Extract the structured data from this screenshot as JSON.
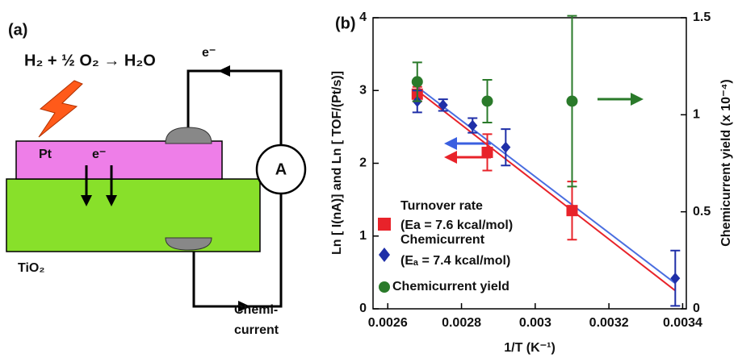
{
  "diagram": {
    "panel_label": "(a)",
    "reaction": "H₂ + ½ O₂ → H₂O",
    "electron_top": "e⁻",
    "metal": "Pt",
    "electron_metal": "e⁻",
    "ammeter": "A",
    "oxide": "TiO₂",
    "current_label_1": "Chemi-",
    "current_label_2": "current"
  },
  "chart_data": {
    "type": "scatter",
    "panel_label": "(b)",
    "x_label": "1/T (K⁻¹)",
    "y_label": "Ln [ I(nA)] and Ln [ TOF/(Pt/s)]",
    "y2_label": "Chemicurrent yield (x 10⁻⁴)",
    "xlim": [
      0.00256,
      0.00341
    ],
    "xticks": [
      0.0026,
      0.0028,
      0.003,
      0.0032,
      0.0034
    ],
    "ylim": [
      0,
      4
    ],
    "yticks": [
      0,
      1,
      2,
      3,
      4
    ],
    "y2lim": [
      0,
      1.5
    ],
    "y2ticks": [
      0,
      0.5,
      1,
      1.5
    ],
    "series": [
      {
        "name": "Turnover rate",
        "note": "(Ea = 7.6 kcal/mol)",
        "marker": "square",
        "color": "#e8232a",
        "x": [
          0.00268,
          0.00287,
          0.0031
        ],
        "values": [
          2.95,
          2.15,
          1.35
        ],
        "errors": [
          0.1,
          0.25,
          0.4
        ]
      },
      {
        "name": "Chemicurrent",
        "note": "(Eₐ = 7.4 kcal/mol)",
        "marker": "diamond",
        "color": "#1f2fa8",
        "x": [
          0.00268,
          0.00275,
          0.00283,
          0.00292,
          0.00338
        ],
        "values": [
          2.85,
          2.8,
          2.52,
          2.22,
          0.42
        ],
        "errors": [
          0.15,
          0.08,
          0.1,
          0.25,
          0.38
        ]
      },
      {
        "name": "Chemicurrent yield",
        "marker": "circle",
        "color": "#2a7a2a",
        "axis": "y2",
        "x": [
          0.00268,
          0.00287,
          0.0031
        ],
        "values": [
          1.17,
          1.07,
          1.07
        ],
        "errors": [
          0.1,
          0.11,
          0.44
        ]
      }
    ],
    "fits": [
      {
        "color": "#e8232a",
        "x": [
          0.00268,
          0.00338
        ],
        "values": [
          3.0,
          0.25
        ]
      },
      {
        "color": "#4a6ee0",
        "x": [
          0.00268,
          0.00338
        ],
        "values": [
          3.05,
          0.35
        ]
      }
    ]
  }
}
